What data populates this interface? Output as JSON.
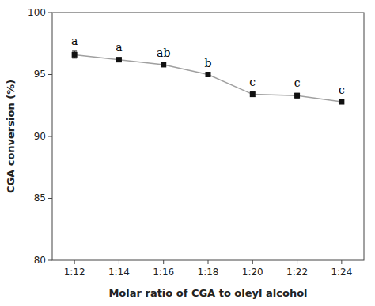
{
  "chart_data": {
    "type": "line",
    "xlabel": "Molar ratio of CGA to oleyl alcohol",
    "ylabel": "CGA conversion (%)",
    "categories": [
      "1:12",
      "1:14",
      "1:16",
      "1:18",
      "1:20",
      "1:22",
      "1:24"
    ],
    "series": [
      {
        "values": [
          96.6,
          96.2,
          95.8,
          95.0,
          93.4,
          93.3,
          92.8
        ],
        "errors": [
          0.28,
          0.15,
          0.15,
          0.12,
          0.18,
          0.18,
          0.15
        ],
        "color": "#111111",
        "marker": "square"
      }
    ],
    "annotations": [
      "a",
      "a",
      "ab",
      "b",
      "c",
      "c",
      "c"
    ],
    "ylim": [
      80,
      100
    ],
    "yticks": [
      80,
      85,
      90,
      95,
      100
    ],
    "grid": false
  }
}
